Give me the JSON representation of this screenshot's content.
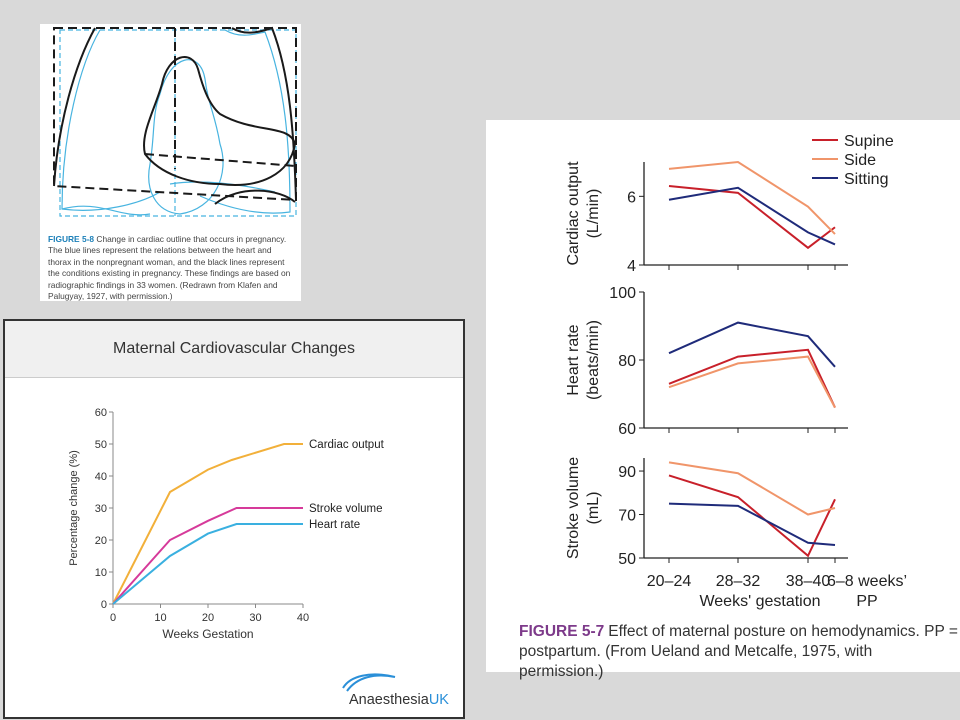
{
  "figure_5_8": {
    "caption_label": "FIGURE 5-8",
    "caption_text": "Change in cardiac outline that occurs in pregnancy. The blue lines represent the relations between the heart and thorax in the nonpregnant woman, and the black lines represent the conditions existing in pregnancy. These findings are based on radiographic findings in 33 women. (Redrawn from Klafen and Palugyay, 1927, with permission.)"
  },
  "chart_data": [
    {
      "id": "maternal",
      "type": "line",
      "title": "Maternal Cardiovascular Changes",
      "xlabel": "Weeks Gestation",
      "ylabel": "Percentage change (%)",
      "xlim": [
        0,
        40
      ],
      "ylim": [
        0,
        60
      ],
      "xticks": [
        0,
        10,
        20,
        30,
        40
      ],
      "yticks": [
        0,
        10,
        20,
        30,
        40,
        50,
        60
      ],
      "series": [
        {
          "name": "Cardiac output",
          "color": "#f2b03a",
          "x": [
            0,
            12,
            20,
            25,
            36,
            40
          ],
          "y": [
            0,
            35,
            42,
            45,
            50,
            50
          ]
        },
        {
          "name": "Stroke volume",
          "color": "#d63a9a",
          "x": [
            0,
            12,
            20,
            26,
            40
          ],
          "y": [
            0,
            20,
            26,
            30,
            30
          ]
        },
        {
          "name": "Heart rate",
          "color": "#3ab0e0",
          "x": [
            0,
            12,
            20,
            26,
            40
          ],
          "y": [
            0,
            15,
            22,
            25,
            25
          ]
        }
      ],
      "grid": false,
      "legend": "direct labels at line ends",
      "logo": {
        "text_main": "Anaesthesia",
        "text_accent": "UK",
        "accent_color": "#2a8fd8"
      }
    },
    {
      "id": "fig57",
      "type": "line",
      "caption_label": "FIGURE 5-7",
      "caption_text": "Effect of maternal posture on hemodynamics. PP = postpartum. (From Ueland and Metcalfe, 1975, with permission.)",
      "xlabel": "Weeks' gestation",
      "categories": [
        "20–24",
        "28–32",
        "38–40",
        "6–8 weeks' PP"
      ],
      "category_labels": [
        "20–24",
        "28–32",
        "38–40",
        "6–8 weeks’"
      ],
      "pp_label": "PP",
      "legend": [
        {
          "name": "Supine",
          "color": "#c8202a"
        },
        {
          "name": "Side",
          "color": "#f0956a"
        },
        {
          "name": "Sitting",
          "color": "#1f2b7a"
        }
      ],
      "legend_position": "top-right",
      "panels": [
        {
          "ylabel": [
            "Cardiac output",
            "(L/min)"
          ],
          "ylim": [
            4,
            7
          ],
          "yticks": [
            4,
            6
          ],
          "series": [
            {
              "name": "Supine",
              "values": [
                6.3,
                6.1,
                4.5,
                5.1
              ]
            },
            {
              "name": "Side",
              "values": [
                6.8,
                7.0,
                5.7,
                4.9
              ]
            },
            {
              "name": "Sitting",
              "values": [
                5.9,
                6.25,
                4.95,
                4.6
              ]
            }
          ]
        },
        {
          "ylabel": [
            "Heart rate",
            "(beats/min)"
          ],
          "ylim": [
            60,
            100
          ],
          "yticks": [
            60,
            80,
            100
          ],
          "series": [
            {
              "name": "Supine",
              "values": [
                73,
                81,
                83,
                66
              ]
            },
            {
              "name": "Side",
              "values": [
                72,
                79,
                81,
                66
              ]
            },
            {
              "name": "Sitting",
              "values": [
                82,
                91,
                87,
                78
              ]
            }
          ]
        },
        {
          "ylabel": [
            "Stroke volume",
            "(mL)"
          ],
          "ylim": [
            50,
            96
          ],
          "yticks": [
            50,
            70,
            90
          ],
          "series": [
            {
              "name": "Supine",
              "values": [
                88,
                78,
                51,
                77
              ]
            },
            {
              "name": "Side",
              "values": [
                94,
                89,
                70,
                73
              ]
            },
            {
              "name": "Sitting",
              "values": [
                75,
                74,
                57,
                56
              ]
            }
          ]
        }
      ]
    }
  ]
}
